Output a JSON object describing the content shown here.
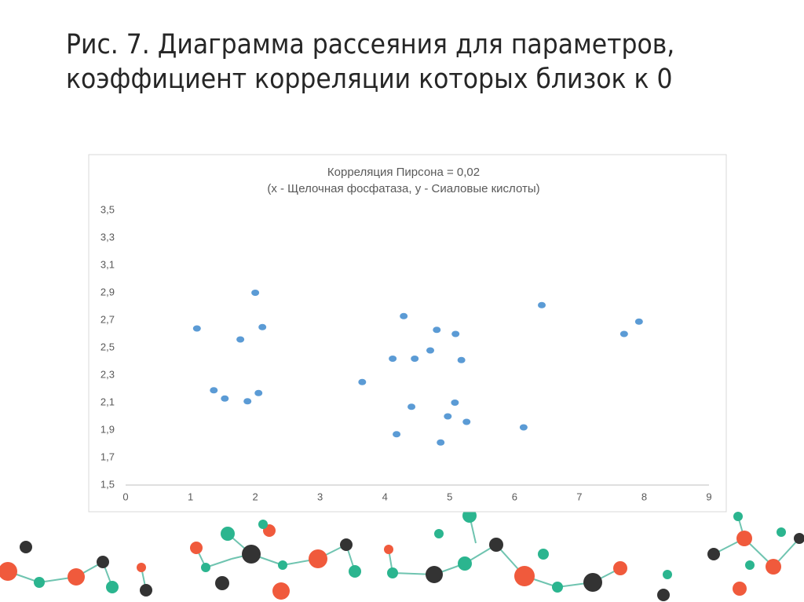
{
  "slide": {
    "title_lines": [
      "Рис. 7. Диаграмма рассеяния для параметров,",
      "коэффициент корреляции которых близок к 0"
    ]
  },
  "chart_data": {
    "type": "scatter",
    "title": "Корреляция Пирсона = 0,02",
    "subtitle": "(x - Щелочная фосфатаза, y - Сиаловые кислоты)",
    "x": [
      1.1,
      2.0,
      2.11,
      1.77,
      1.36,
      1.53,
      1.88,
      2.05,
      3.65,
      4.12,
      4.29,
      4.46,
      4.18,
      4.41,
      4.7,
      4.8,
      5.09,
      5.18,
      5.08,
      4.97,
      5.26,
      4.86,
      6.14,
      6.42,
      7.69,
      7.92
    ],
    "values": [
      2.64,
      2.9,
      2.65,
      2.56,
      2.19,
      2.13,
      2.11,
      2.17,
      2.25,
      2.42,
      2.73,
      2.42,
      1.87,
      2.07,
      2.48,
      2.63,
      2.6,
      2.41,
      2.1,
      2.0,
      1.96,
      1.81,
      1.92,
      2.81,
      2.6,
      2.69
    ],
    "color": "#5b9bd5",
    "xlim": [
      0,
      9
    ],
    "xticks": [
      0,
      1,
      2,
      3,
      4,
      5,
      6,
      7,
      8,
      9
    ],
    "ylim": [
      1.5,
      3.5
    ],
    "yticks": [
      {
        "value": 1.5,
        "label": "1,5"
      },
      {
        "value": 1.7,
        "label": "1,7"
      },
      {
        "value": 1.9,
        "label": "1,9"
      },
      {
        "value": 2.1,
        "label": "2,1"
      },
      {
        "value": 2.3,
        "label": "2,3"
      },
      {
        "value": 2.5,
        "label": "2,5"
      },
      {
        "value": 2.7,
        "label": "2,7"
      },
      {
        "value": 2.9,
        "label": "2,9"
      },
      {
        "value": 3.1,
        "label": "3,1"
      },
      {
        "value": 3.3,
        "label": "3,3"
      },
      {
        "value": 3.5,
        "label": "3,5"
      }
    ],
    "grid": false
  }
}
